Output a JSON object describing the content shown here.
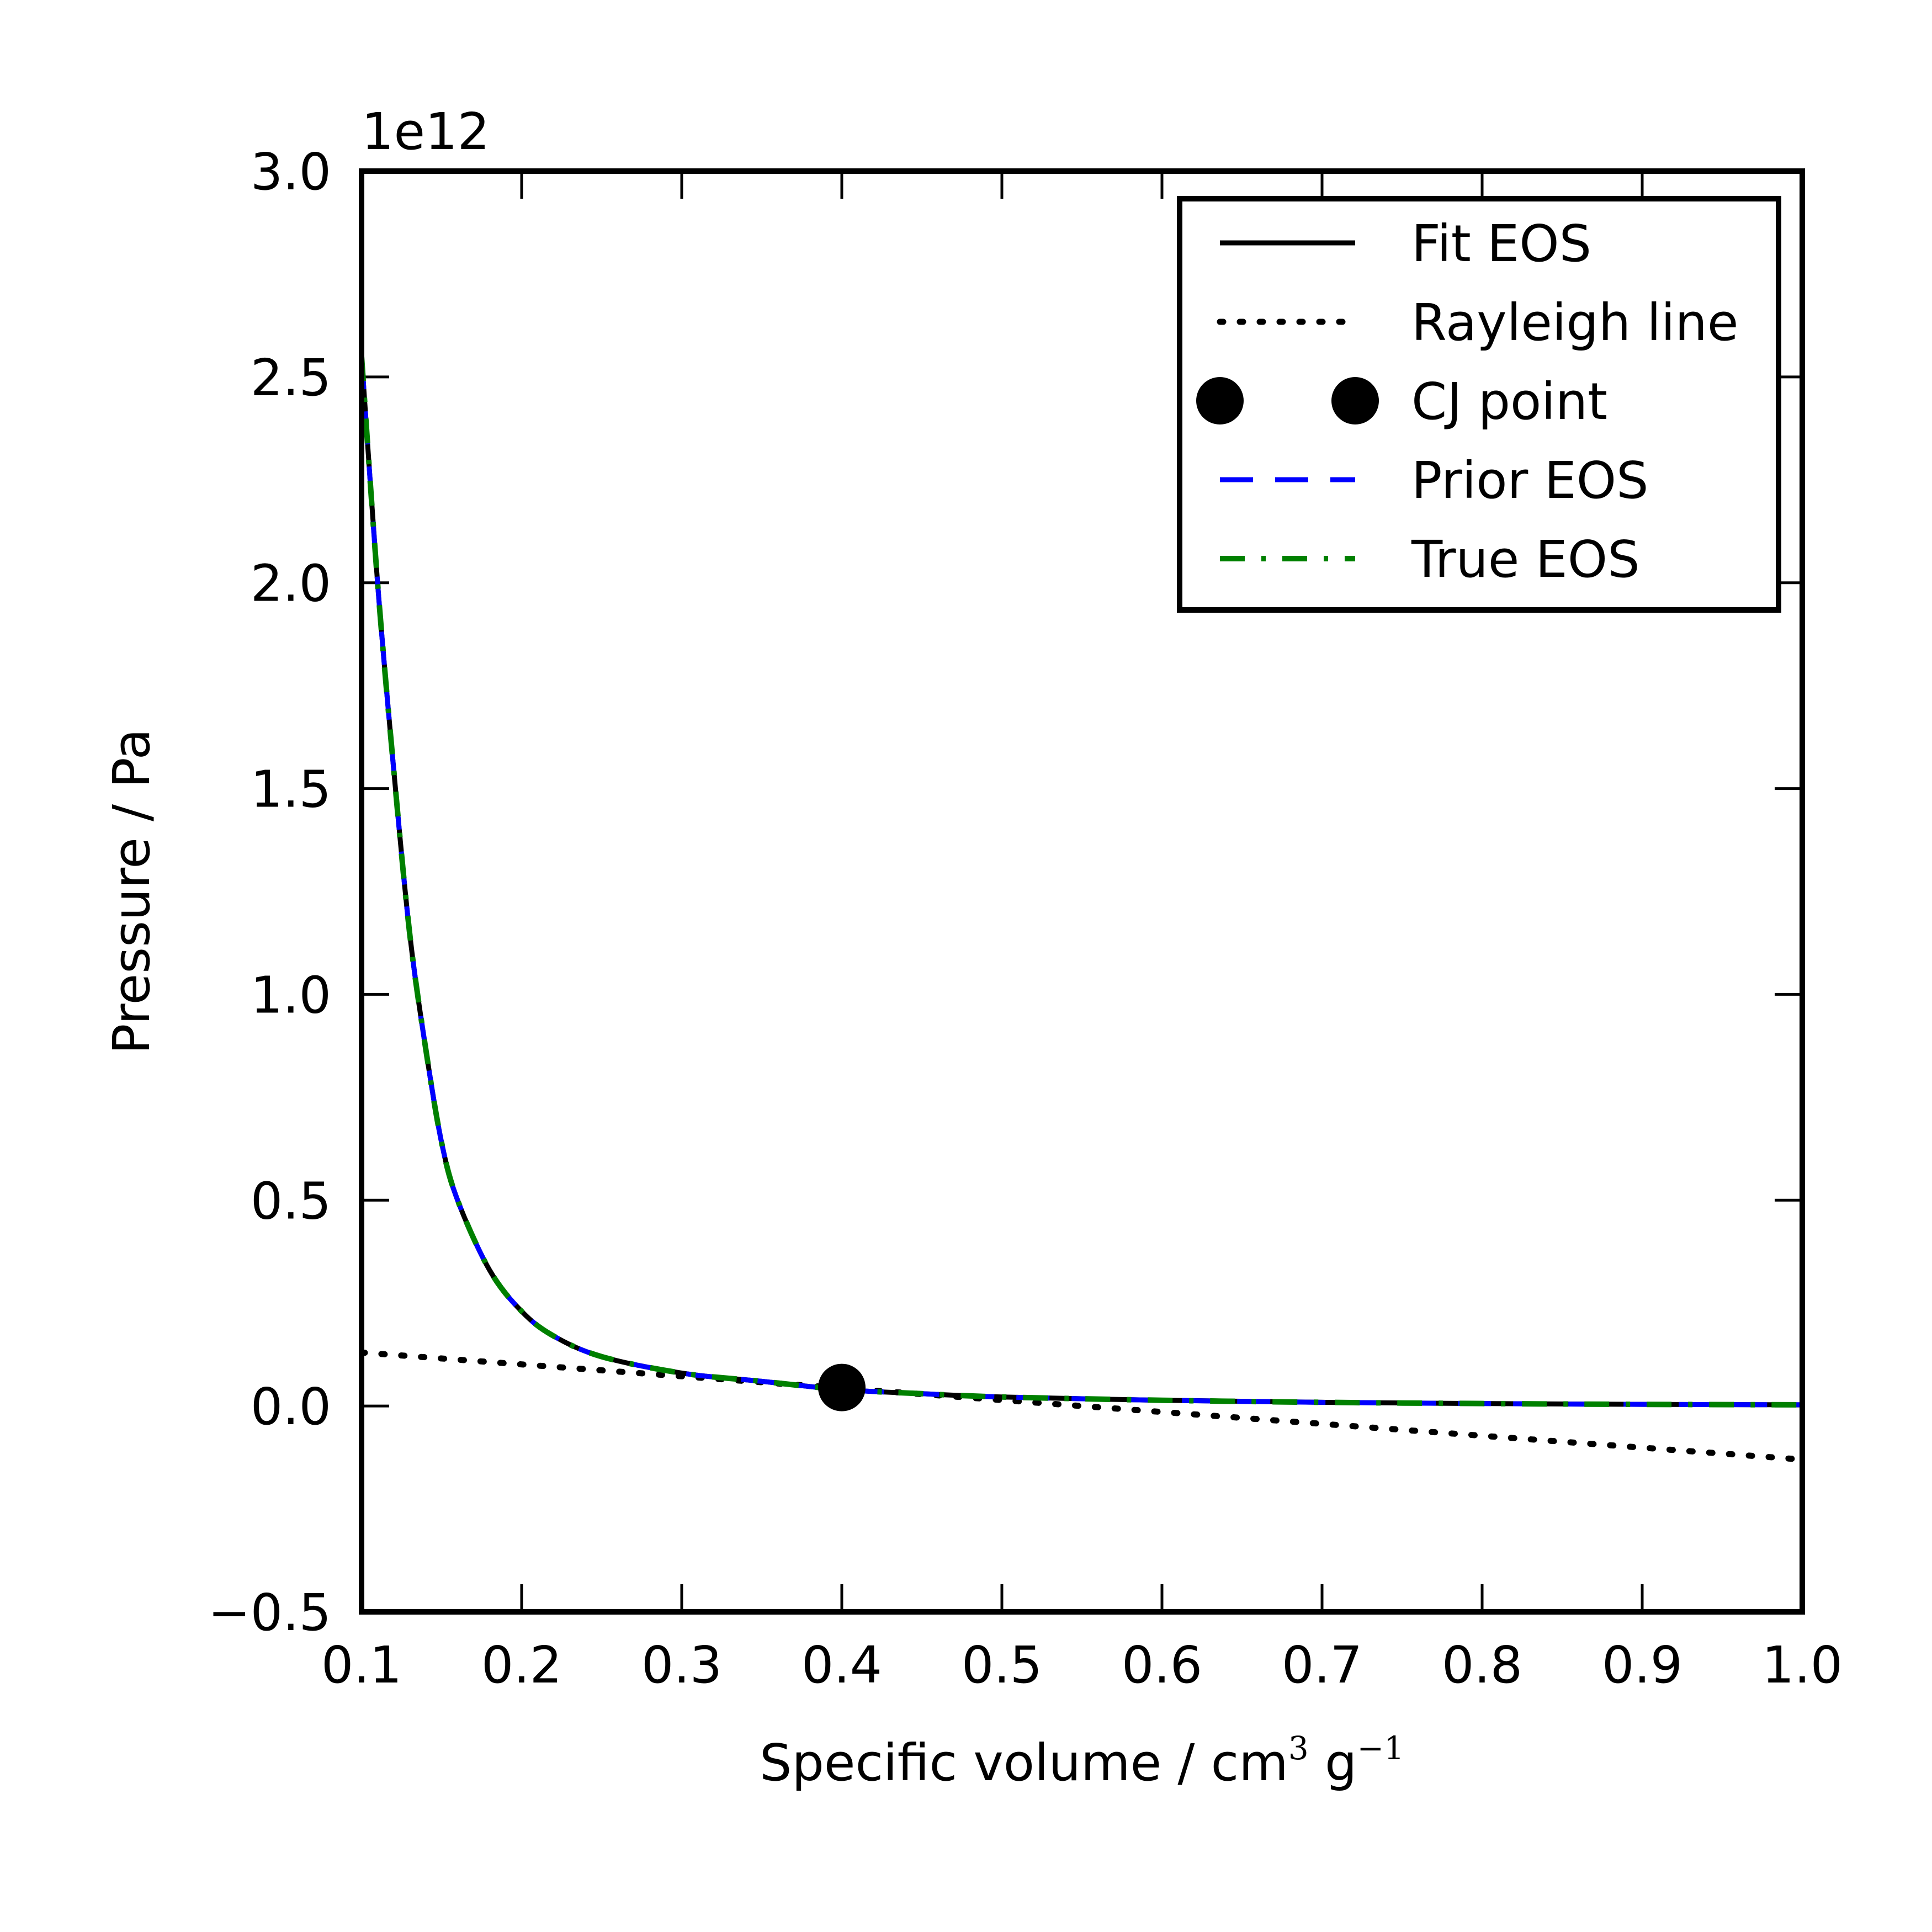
{
  "chart_data": {
    "type": "line",
    "title": "",
    "xlabel": "Specific volume / cm",
    "xlabel_sup1": "3",
    "xlabel_mid": " g",
    "xlabel_sup2": "−1",
    "ylabel": "Pressure / Pa",
    "y_offset_text": "1e12",
    "xlim": [
      0.1,
      1.0
    ],
    "ylim": [
      -0.5,
      3.0
    ],
    "y_unit_scale": 1000000000000.0,
    "grid": false,
    "legend_position": "upper right",
    "x_ticks": [
      0.1,
      0.2,
      0.3,
      0.4,
      0.5,
      0.6,
      0.7,
      0.8,
      0.9,
      1.0
    ],
    "x_tick_labels": [
      "0.1",
      "0.2",
      "0.3",
      "0.4",
      "0.5",
      "0.6",
      "0.7",
      "0.8",
      "0.9",
      "1.0"
    ],
    "y_ticks": [
      -0.5,
      0.0,
      0.5,
      1.0,
      1.5,
      2.0,
      2.5,
      3.0
    ],
    "y_tick_labels": [
      "−0.5",
      "0.0",
      "0.5",
      "1.0",
      "1.5",
      "2.0",
      "2.5",
      "3.0"
    ],
    "series": [
      {
        "name": "Fit EOS",
        "color": "#000000",
        "style": "solid",
        "x": [
          0.1,
          0.11,
          0.12,
          0.13,
          0.14,
          0.15,
          0.16,
          0.18,
          0.2,
          0.22,
          0.25,
          0.3,
          0.35,
          0.4,
          0.45,
          0.5,
          0.6,
          0.7,
          0.8,
          0.9,
          1.0
        ],
        "y": [
          2.55,
          2.0,
          1.55,
          1.15,
          0.87,
          0.64,
          0.5,
          0.33,
          0.23,
          0.17,
          0.12,
          0.08,
          0.06,
          0.04,
          0.03,
          0.022,
          0.014,
          0.009,
          0.006,
          0.004,
          0.003
        ]
      },
      {
        "name": "Rayleigh line",
        "color": "#000000",
        "style": "dotted",
        "x": [
          0.1,
          1.0
        ],
        "y": [
          0.13,
          -0.13
        ]
      },
      {
        "name": "CJ point",
        "color": "#000000",
        "style": "marker",
        "x": [
          0.4
        ],
        "y": [
          0.045
        ]
      },
      {
        "name": "Prior EOS",
        "color": "#0000ff",
        "style": "dashed",
        "x": [
          0.1,
          0.11,
          0.12,
          0.13,
          0.14,
          0.15,
          0.16,
          0.18,
          0.2,
          0.22,
          0.25,
          0.3,
          0.35,
          0.4,
          0.45,
          0.5,
          0.6,
          0.7,
          0.8,
          0.9,
          1.0
        ],
        "y": [
          2.55,
          2.0,
          1.55,
          1.15,
          0.87,
          0.64,
          0.5,
          0.33,
          0.23,
          0.17,
          0.12,
          0.08,
          0.06,
          0.04,
          0.03,
          0.022,
          0.014,
          0.009,
          0.006,
          0.004,
          0.003
        ]
      },
      {
        "name": "True EOS",
        "color": "#008000",
        "style": "dashdot",
        "x": [
          0.1,
          0.11,
          0.12,
          0.13,
          0.14,
          0.15,
          0.16,
          0.18,
          0.2,
          0.22,
          0.25,
          0.3,
          0.35,
          0.4,
          0.45,
          0.5,
          0.6,
          0.7,
          0.8,
          0.9,
          1.0
        ],
        "y": [
          2.55,
          2.0,
          1.55,
          1.15,
          0.87,
          0.64,
          0.5,
          0.33,
          0.23,
          0.17,
          0.12,
          0.08,
          0.06,
          0.04,
          0.03,
          0.022,
          0.014,
          0.009,
          0.006,
          0.004,
          0.003
        ]
      }
    ]
  }
}
